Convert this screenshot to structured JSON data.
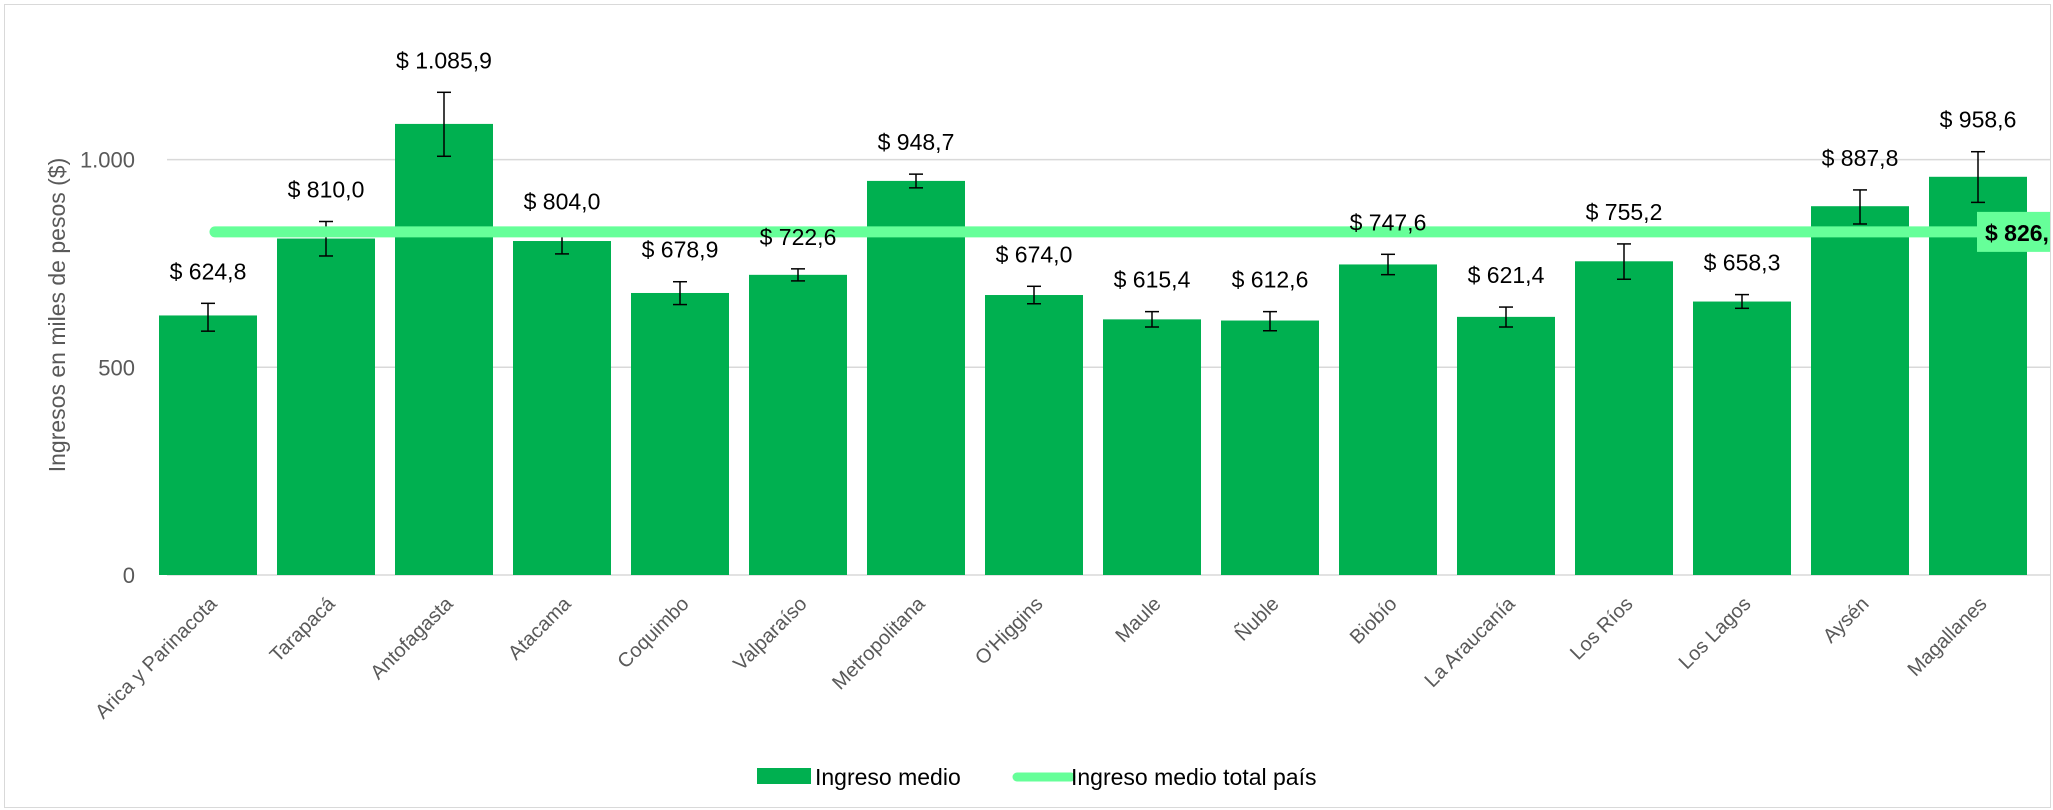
{
  "chart_data": {
    "type": "bar",
    "ylabel": "Ingresos en miles de pesos ($)",
    "ylim": [
      0,
      1200
    ],
    "y_ticks": [
      0,
      500,
      1000
    ],
    "y_tick_labels": [
      "0",
      "500",
      "1.000"
    ],
    "grid": true,
    "legend_placement": "bottom",
    "bar_color": "#00b050",
    "line_color": "#66ff99",
    "categories": [
      "Arica y Parinacota",
      "Tarapacá",
      "Antofagasta",
      "Atacama",
      "Coquimbo",
      "Valparaíso",
      "Metropolitana",
      "O'Higgins",
      "Maule",
      "Ñuble",
      "Biobío",
      "La Araucanía",
      "Los Ríos",
      "Los Lagos",
      "Aysén",
      "Magallanes"
    ],
    "series": [
      {
        "name": "Ingreso medio",
        "type": "bar",
        "values": [
          624.8,
          810.0,
          1085.9,
          804.0,
          678.9,
          722.6,
          948.7,
          674.0,
          615.4,
          612.6,
          747.6,
          621.4,
          755.2,
          658.3,
          887.8,
          958.6
        ],
        "labels": [
          "$ 624,8",
          "$ 810,0",
          "$ 1.085,9",
          "$ 804,0",
          "$ 678,9",
          "$ 722,6",
          "$ 948,7",
          "$ 674,0",
          "$ 615,4",
          "$ 612,6",
          "$ 747,6",
          "$ 621,4",
          "$ 755,2",
          "$ 658,3",
          "$ 887,8",
          "$ 958,6"
        ],
        "error_low": [
          587,
          768,
          1008,
          773,
          651,
          708,
          932,
          653,
          597,
          588,
          723,
          597,
          712,
          642,
          845,
          897
        ],
        "error_high": [
          654,
          851,
          1162,
          822,
          706,
          737,
          965,
          695,
          634,
          634,
          772,
          645,
          797,
          675,
          927,
          1019
        ]
      },
      {
        "name": "Ingreso medio total país",
        "type": "line",
        "value": 826,
        "label": "$ 826,"
      }
    ]
  }
}
